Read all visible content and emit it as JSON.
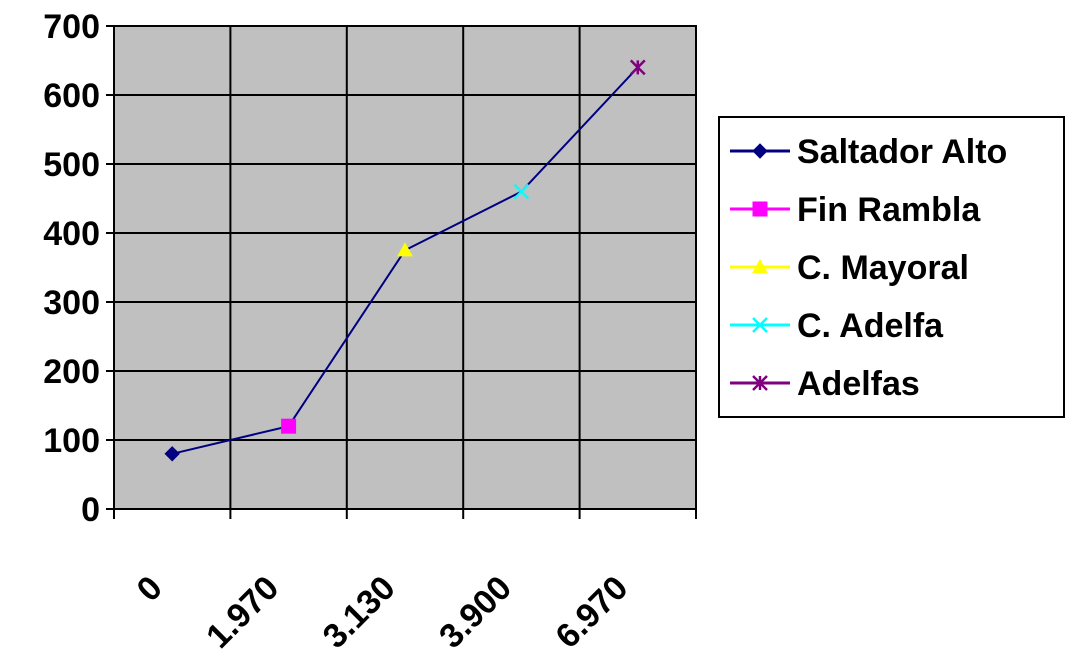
{
  "chart_data": {
    "type": "line",
    "title": "",
    "xlabel": "",
    "ylabel": "",
    "categories": [
      "0",
      "1.970",
      "3.130",
      "3.900",
      "6.970"
    ],
    "values": [
      80,
      120,
      375,
      460,
      640
    ],
    "ylim": [
      0,
      700
    ],
    "yticks": [
      "0",
      "100",
      "200",
      "300",
      "400",
      "500",
      "600",
      "700"
    ],
    "grid": true,
    "legend_position": "right",
    "line_color": "#000080",
    "plot_background": "#c0c0c0",
    "points": [
      {
        "name": "Saltador Alto",
        "marker": "diamond",
        "color": "#000080"
      },
      {
        "name": "Fin Rambla",
        "marker": "square",
        "color": "#ff00ff"
      },
      {
        "name": "C. Mayoral",
        "marker": "triangle",
        "color": "#ffff00"
      },
      {
        "name": "C. Adelfa",
        "marker": "x",
        "color": "#00ffff"
      },
      {
        "name": "Adelfas",
        "marker": "star",
        "color": "#800080"
      }
    ]
  }
}
